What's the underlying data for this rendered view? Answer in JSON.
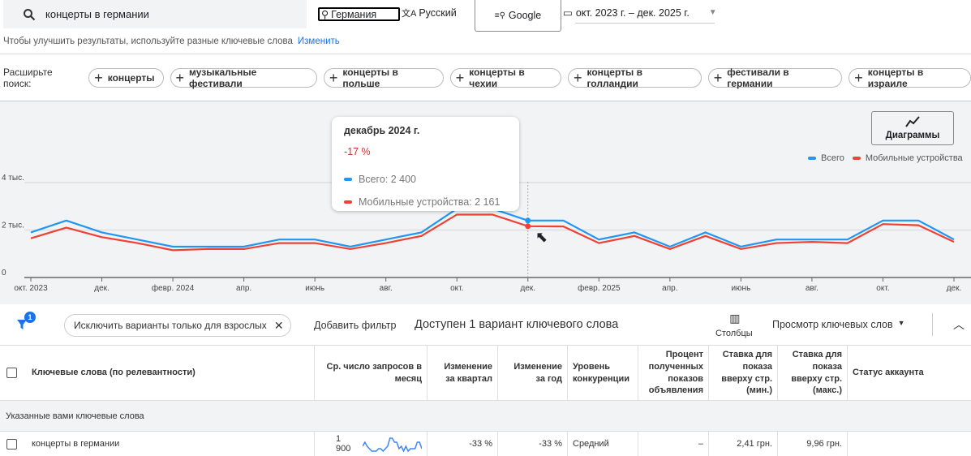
{
  "search": {
    "query": "концерты в германии",
    "location": "Германия",
    "language": "Русский",
    "engine": "Google",
    "date_range": "окт. 2023 г. – дек. 2025 г."
  },
  "hint": {
    "text": "Чтобы улучшить результаты, используйте разные ключевые слова",
    "link": "Изменить"
  },
  "expand": {
    "label": "Расширьте поиск:",
    "chips": [
      "концерты",
      "музыкальные фестивали",
      "концерты в польше",
      "концерты в чехии",
      "концерты в голландии",
      "фестивали в германии",
      "концерты в израиле"
    ]
  },
  "tooltip": {
    "title": "декабрь 2024 г.",
    "change": "-17 %",
    "total": "Всего: 2 400",
    "mobile": "Мобильные устройства: 2 161"
  },
  "diagrams_button": "Диаграммы",
  "colors": {
    "total": "#2196f3",
    "mobile": "#ef4136",
    "change": "#d93025"
  },
  "chart_data": {
    "type": "line",
    "title": "",
    "xlabel": "",
    "ylabel": "",
    "ylim": [
      0,
      4000
    ],
    "y_ticks": [
      "0",
      "2 тыс.",
      "4 тыс."
    ],
    "y_tick_values": [
      0,
      2000,
      4000
    ],
    "x_tick_labels": [
      "окт. 2023",
      "дек.",
      "февр. 2024",
      "апр.",
      "июнь",
      "авг.",
      "окт.",
      "дек.",
      "февр. 2025",
      "апр.",
      "июнь",
      "авг.",
      "окт.",
      "дек."
    ],
    "x": [
      "2023-10",
      "2023-11",
      "2023-12",
      "2024-01",
      "2024-02",
      "2024-03",
      "2024-04",
      "2024-05",
      "2024-06",
      "2024-07",
      "2024-08",
      "2024-09",
      "2024-10",
      "2024-11",
      "2024-12",
      "2025-01",
      "2025-02",
      "2025-03",
      "2025-04",
      "2025-05",
      "2025-06",
      "2025-07",
      "2025-08",
      "2025-09",
      "2025-10",
      "2025-11",
      "2025-12"
    ],
    "legend": "top-right",
    "series": [
      {
        "name": "Всего",
        "values": [
          1900,
          2400,
          1900,
          1600,
          1300,
          1300,
          1300,
          1600,
          1600,
          1300,
          1600,
          1900,
          2900,
          2900,
          2400,
          2400,
          1600,
          1900,
          1300,
          1900,
          1300,
          1600,
          1600,
          1600,
          2400,
          2400,
          1600
        ]
      },
      {
        "name": "Мобильные устройства",
        "values": [
          1650,
          2100,
          1700,
          1450,
          1150,
          1200,
          1200,
          1450,
          1450,
          1200,
          1450,
          1750,
          2650,
          2650,
          2161,
          2150,
          1450,
          1750,
          1200,
          1750,
          1200,
          1450,
          1500,
          1450,
          2250,
          2200,
          1500
        ]
      }
    ],
    "highlight_index": 14
  },
  "filters": {
    "count": "1",
    "adult_chip": "Исключить варианты только для взрослых",
    "add_filter": "Добавить фильтр",
    "available": "Доступен 1 вариант ключевого слова",
    "columns": "Столбцы",
    "view": "Просмотр ключевых слов"
  },
  "table": {
    "headers": [
      "Ключевые слова (по релевантности)",
      "Ср. число запросов в месяц",
      "Изменение за квартал",
      "Изменение за год",
      "Уровень конкуренции",
      "Процент полученных показов объявления",
      "Ставка для показа вверху стр. (мин.)",
      "Ставка для показа вверху стр. (макс.)",
      "Статус аккаунта"
    ],
    "group": "Указанные вами ключевые слова",
    "rows": [
      {
        "keyword": "концерты в германии",
        "searches": "1 900",
        "quarter": "-33 %",
        "year": "-33 %",
        "competition": "Средний",
        "impr_share": "–",
        "bid_low": "2,41 грн.",
        "bid_high": "9,96 грн.",
        "status": ""
      }
    ]
  }
}
